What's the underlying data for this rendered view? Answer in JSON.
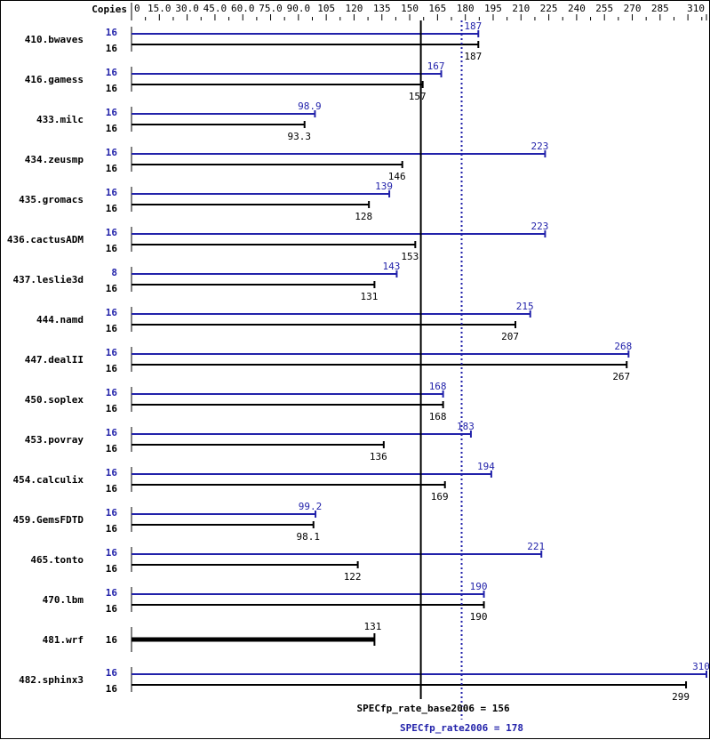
{
  "chart_data": {
    "type": "bar",
    "orientation": "horizontal",
    "header_label": "Copies",
    "xlim": [
      0,
      310
    ],
    "x_ticks": [
      "0",
      "15.0",
      "30.0",
      "45.0",
      "60.0",
      "75.0",
      "90.0",
      "105",
      "120",
      "135",
      "150",
      "165",
      "180",
      "195",
      "210",
      "225",
      "240",
      "255",
      "270",
      "285",
      "310"
    ],
    "x_tick_values": [
      0,
      15,
      30,
      45,
      60,
      75,
      90,
      105,
      120,
      135,
      150,
      165,
      180,
      195,
      210,
      225,
      240,
      255,
      270,
      285,
      310
    ],
    "colors": {
      "peak": "#2222aa",
      "base": "#000000"
    },
    "benchmarks": [
      {
        "name": "410.bwaves",
        "peak_copies": "16",
        "peak": 187,
        "peak_label": "187",
        "base_copies": "16",
        "base": 187,
        "base_label": "187"
      },
      {
        "name": "416.gamess",
        "peak_copies": "16",
        "peak": 167,
        "peak_label": "167",
        "base_copies": "16",
        "base": 157,
        "base_label": "157"
      },
      {
        "name": "433.milc",
        "peak_copies": "16",
        "peak": 98.9,
        "peak_label": "98.9",
        "base_copies": "16",
        "base": 93.3,
        "base_label": "93.3"
      },
      {
        "name": "434.zeusmp",
        "peak_copies": "16",
        "peak": 223,
        "peak_label": "223",
        "base_copies": "16",
        "base": 146,
        "base_label": "146"
      },
      {
        "name": "435.gromacs",
        "peak_copies": "16",
        "peak": 139,
        "peak_label": "139",
        "base_copies": "16",
        "base": 128,
        "base_label": "128"
      },
      {
        "name": "436.cactusADM",
        "peak_copies": "16",
        "peak": 223,
        "peak_label": "223",
        "base_copies": "16",
        "base": 153,
        "base_label": "153"
      },
      {
        "name": "437.leslie3d",
        "peak_copies": "8",
        "peak": 143,
        "peak_label": "143",
        "base_copies": "16",
        "base": 131,
        "base_label": "131"
      },
      {
        "name": "444.namd",
        "peak_copies": "16",
        "peak": 215,
        "peak_label": "215",
        "base_copies": "16",
        "base": 207,
        "base_label": "207"
      },
      {
        "name": "447.dealII",
        "peak_copies": "16",
        "peak": 268,
        "peak_label": "268",
        "base_copies": "16",
        "base": 267,
        "base_label": "267"
      },
      {
        "name": "450.soplex",
        "peak_copies": "16",
        "peak": 168,
        "peak_label": "168",
        "base_copies": "16",
        "base": 168,
        "base_label": "168"
      },
      {
        "name": "453.povray",
        "peak_copies": "16",
        "peak": 183,
        "peak_label": "183",
        "base_copies": "16",
        "base": 136,
        "base_label": "136"
      },
      {
        "name": "454.calculix",
        "peak_copies": "16",
        "peak": 194,
        "peak_label": "194",
        "base_copies": "16",
        "base": 169,
        "base_label": "169"
      },
      {
        "name": "459.GemsFDTD",
        "peak_copies": "16",
        "peak": 99.2,
        "peak_label": "99.2",
        "base_copies": "16",
        "base": 98.1,
        "base_label": "98.1"
      },
      {
        "name": "465.tonto",
        "peak_copies": "16",
        "peak": 221,
        "peak_label": "221",
        "base_copies": "16",
        "base": 122,
        "base_label": "122"
      },
      {
        "name": "470.lbm",
        "peak_copies": "16",
        "peak": 190,
        "peak_label": "190",
        "base_copies": "16",
        "base": 190,
        "base_label": "190"
      },
      {
        "name": "481.wrf",
        "peak_copies": null,
        "peak": null,
        "peak_label": null,
        "base_copies": "16",
        "base": 131,
        "base_label": "131"
      },
      {
        "name": "482.sphinx3",
        "peak_copies": "16",
        "peak": 310,
        "peak_label": "310",
        "base_copies": "16",
        "base": 299,
        "base_label": "299"
      }
    ],
    "base_summary": {
      "label": "SPECfp_rate_base2006 = 156",
      "value": 156
    },
    "peak_summary": {
      "label": "SPECfp_rate2006 = 178",
      "value": 178
    }
  }
}
